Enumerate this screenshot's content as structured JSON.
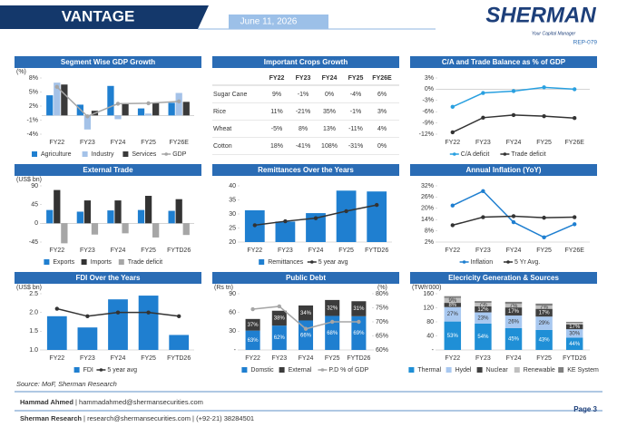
{
  "header": {
    "title": "VANTAGE",
    "date": "June 11, 2026",
    "brand": "SHERMAN",
    "tagline": "Your Capital Manager",
    "report_id": "REP-079"
  },
  "table": {
    "title": "Important Crops Growth",
    "columns": [
      "FY22",
      "FY23",
      "FY24",
      "FY25",
      "FY26E"
    ],
    "rows": [
      [
        "Sugar Cane",
        "9%",
        "-1%",
        "0%",
        "-4%",
        "6%"
      ],
      [
        "Rice",
        "11%",
        "-21%",
        "35%",
        "-1%",
        "3%"
      ],
      [
        "Wheat",
        "-5%",
        "8%",
        "13%",
        "-11%",
        "4%"
      ],
      [
        "Cotton",
        "18%",
        "-41%",
        "108%",
        "-31%",
        "0%"
      ]
    ]
  },
  "chart_data": [
    {
      "type": "bar",
      "title": "Segment Wise GDP Growth",
      "y_label": "(%)",
      "categories": [
        "FY22",
        "FY23",
        "FY24",
        "FY25",
        "FY26E"
      ],
      "ylim": [
        -4,
        8
      ],
      "yticks": [
        {
          "value": -4,
          "label": "-4%"
        },
        {
          "value": -1,
          "label": "-1%"
        },
        {
          "value": 2,
          "label": "2%"
        },
        {
          "value": 5,
          "label": "5%"
        },
        {
          "value": 8,
          "label": "8%"
        }
      ],
      "series": [
        {
          "name": "Agriculture",
          "color": "#1f7fd0",
          "kind": "bar",
          "values": [
            4.3,
            2.3,
            6.3,
            1.5,
            2.7
          ]
        },
        {
          "name": "Industry",
          "color": "#a4c2e8",
          "kind": "bar",
          "values": [
            7.0,
            -3.0,
            -0.8,
            0.4,
            4.8
          ]
        },
        {
          "name": "Services",
          "color": "#3a3a3a",
          "kind": "bar",
          "values": [
            6.6,
            1.0,
            2.4,
            2.7,
            2.9
          ]
        },
        {
          "name": "GDP",
          "color": "#a6a6a6",
          "kind": "line",
          "values": [
            6.1,
            -0.2,
            2.5,
            2.6,
            3.0
          ]
        }
      ]
    },
    {
      "type": "line",
      "title": "C/A and Trade Balance as % of GDP",
      "categories": [
        "FY22",
        "FY23",
        "FY24",
        "FY25",
        "FY26E"
      ],
      "ylim": [
        -12,
        3
      ],
      "yticks": [
        {
          "value": 3,
          "label": "3%"
        },
        {
          "value": 0,
          "label": "0%"
        },
        {
          "value": -3,
          "label": "-3%"
        },
        {
          "value": -6,
          "label": "-6%"
        },
        {
          "value": -9,
          "label": "-9%"
        },
        {
          "value": -12,
          "label": "-12%"
        }
      ],
      "series": [
        {
          "name": "C/A deficit",
          "color": "#29a0e0",
          "kind": "line",
          "values": [
            -4.7,
            -1.0,
            -0.5,
            0.5,
            0.0
          ]
        },
        {
          "name": "Trade deficit",
          "color": "#333333",
          "kind": "line",
          "values": [
            -11.5,
            -7.6,
            -6.9,
            -7.2,
            -7.7
          ]
        }
      ]
    },
    {
      "type": "bar",
      "title": "External Trade",
      "y_label": "(US$ bn)",
      "categories": [
        "FY22",
        "FY23",
        "FY24",
        "FY25",
        "FYTD26"
      ],
      "ylim": [
        -45,
        90
      ],
      "yticks": [
        -45,
        0,
        45,
        90
      ],
      "series": [
        {
          "name": "Exports",
          "color": "#1f7fd0",
          "kind": "bar",
          "values": [
            32,
            28,
            31,
            32,
            30
          ]
        },
        {
          "name": "Imports",
          "color": "#333333",
          "kind": "bar",
          "values": [
            80,
            55,
            55,
            66,
            58
          ]
        },
        {
          "name": "Trade deficit",
          "color": "#a6a6a6",
          "kind": "bar",
          "values": [
            -48,
            -27,
            -24,
            -34,
            -28
          ]
        }
      ]
    },
    {
      "type": "bar",
      "title": "Remittances Over the Years",
      "categories": [
        "FY22",
        "FY23",
        "FY24",
        "FY25",
        "FYTD26"
      ],
      "ylim": [
        20,
        40
      ],
      "yticks": [
        20,
        25,
        30,
        35,
        40
      ],
      "series": [
        {
          "name": "Remittances",
          "color": "#1f7fd0",
          "kind": "bar",
          "values": [
            31.3,
            27.3,
            30.3,
            38.3,
            38.0
          ]
        },
        {
          "name": "5 year avg",
          "color": "#333333",
          "kind": "line",
          "values": [
            26.0,
            27.4,
            28.5,
            31.0,
            33.2
          ]
        }
      ]
    },
    {
      "type": "line",
      "title": "Annual Inflation (YoY)",
      "categories": [
        "FY22",
        "FY23",
        "FY24",
        "FY25",
        "FY26E"
      ],
      "ylim": [
        2,
        32
      ],
      "yticks": [
        {
          "value": 2,
          "label": "2%"
        },
        {
          "value": 8,
          "label": "8%"
        },
        {
          "value": 14,
          "label": "14%"
        },
        {
          "value": 20,
          "label": "20%"
        },
        {
          "value": 26,
          "label": "26%"
        },
        {
          "value": 32,
          "label": "32%"
        }
      ],
      "series": [
        {
          "name": "Inflation",
          "color": "#1f7fd0",
          "kind": "line",
          "values": [
            21.5,
            29.2,
            12.6,
            4.5,
            11.5
          ]
        },
        {
          "name": "5 Yr Avg.",
          "color": "#333333",
          "kind": "line",
          "values": [
            11.0,
            15.3,
            15.8,
            15.0,
            15.3
          ]
        }
      ]
    },
    {
      "type": "bar",
      "title": "FDI Over the Years",
      "y_label": "(US$ bn)",
      "categories": [
        "FY22",
        "FY23",
        "FY24",
        "FY25",
        "FYTD26"
      ],
      "ylim": [
        1.0,
        2.5
      ],
      "yticks": [
        {
          "value": 1.0,
          "label": "1.0"
        },
        1.5,
        {
          "value": 2.0,
          "label": "2.0"
        },
        2.5
      ],
      "series": [
        {
          "name": "FDI",
          "color": "#1f7fd0",
          "kind": "bar",
          "values": [
            1.9,
            1.6,
            2.35,
            2.45,
            1.4
          ]
        },
        {
          "name": "5 year avg",
          "color": "#333333",
          "kind": "line",
          "values": [
            2.1,
            1.9,
            2.0,
            2.0,
            1.9
          ]
        }
      ]
    },
    {
      "type": "stacked_bar",
      "title": "Public Debt",
      "y_label": "(Rs tn)",
      "y2_label": "(%)",
      "categories": [
        "FY22",
        "FY23",
        "FY24",
        "FY25",
        "FYTD26"
      ],
      "ylim": [
        0,
        90
      ],
      "yticks": [
        {
          "value": 0,
          "label": "-"
        },
        30,
        60,
        90
      ],
      "y2lim": [
        60,
        80
      ],
      "y2ticks": [
        {
          "value": 60,
          "label": "60%"
        },
        {
          "value": 65,
          "label": "65%"
        },
        {
          "value": 70,
          "label": "70%"
        },
        {
          "value": 75,
          "label": "75%"
        },
        {
          "value": 80,
          "label": "80%"
        }
      ],
      "series": [
        {
          "name": "Domstic",
          "color": "#1f7fd0",
          "kind": "bar",
          "values": [
            31.0,
            39.0,
            47.2,
            54.5,
            54.0
          ],
          "shares": [
            63,
            62,
            66,
            68,
            69
          ],
          "share_labels": [
            "63%",
            "62%",
            "66%",
            "68%",
            "69%"
          ]
        },
        {
          "name": "External",
          "color": "#3b3b3b",
          "kind": "bar",
          "values": [
            18.6,
            23.8,
            24.0,
            25.5,
            24.0
          ],
          "shares": [
            37,
            38,
            34,
            32,
            31
          ],
          "share_labels": [
            "37%",
            "38%",
            "34%",
            "32%",
            "31%"
          ]
        },
        {
          "name": "P.D % of GDP",
          "color": "#a6a6a6",
          "kind": "line",
          "axis": "y2",
          "values": [
            74.5,
            75.5,
            67.5,
            70.0,
            70.0
          ]
        }
      ]
    },
    {
      "type": "stacked_bar",
      "title": "Elecricity Generation & Sources",
      "y_label": "(TWh'000)",
      "categories": [
        "FY22",
        "FY23",
        "FY24",
        "FY25",
        "FYTD26"
      ],
      "ylim": [
        0,
        160
      ],
      "yticks": [
        {
          "value": 0,
          "label": "-"
        },
        40,
        80,
        120,
        160
      ],
      "series": [
        {
          "name": "Thermal",
          "color": "#1f8fd6",
          "kind": "bar",
          "values": [
            81,
            75,
            62,
            57,
            35
          ],
          "shares": [
            53,
            54,
            45,
            43,
            44
          ],
          "share_labels": [
            "53%",
            "54%",
            "45%",
            "43%",
            "44%"
          ]
        },
        {
          "name": "Hydel",
          "color": "#a8c8f0",
          "kind": "bar",
          "values": [
            41,
            32,
            36,
            38,
            24
          ],
          "shares": [
            27,
            23,
            26,
            29,
            30
          ],
          "share_labels": [
            "27%",
            "23%",
            "26%",
            "29%",
            "30%"
          ]
        },
        {
          "name": "Nuclear",
          "color": "#404040",
          "kind": "bar",
          "values": [
            12,
            17,
            23,
            22,
            14
          ],
          "shares": [
            8,
            12,
            17,
            17,
            17
          ],
          "share_labels": [
            "8%",
            "12%",
            "17%",
            "17%",
            "17%"
          ]
        },
        {
          "name": "Renewable",
          "color": "#bfbfbf",
          "kind": "bar",
          "values": [
            14,
            10,
            10,
            9,
            4
          ],
          "shares": [
            9,
            7,
            7,
            7,
            null
          ],
          "share_labels": [
            "9%",
            "7%",
            "7%",
            "7%",
            null
          ]
        },
        {
          "name": "KE System",
          "color": "#7f7f7f",
          "kind": "bar",
          "values": [
            5,
            5,
            6,
            6,
            3
          ]
        }
      ]
    }
  ],
  "footer": {
    "source": "Source: MoF, Sherman Research",
    "author": "Hammad Ahmed",
    "author_contact": " | hammadahmed@shermansecurities.com",
    "org": "Sherman Research",
    "org_contact": " | research@shermansecurities.com | (+92-21) 38284501",
    "page": "Page 3"
  }
}
